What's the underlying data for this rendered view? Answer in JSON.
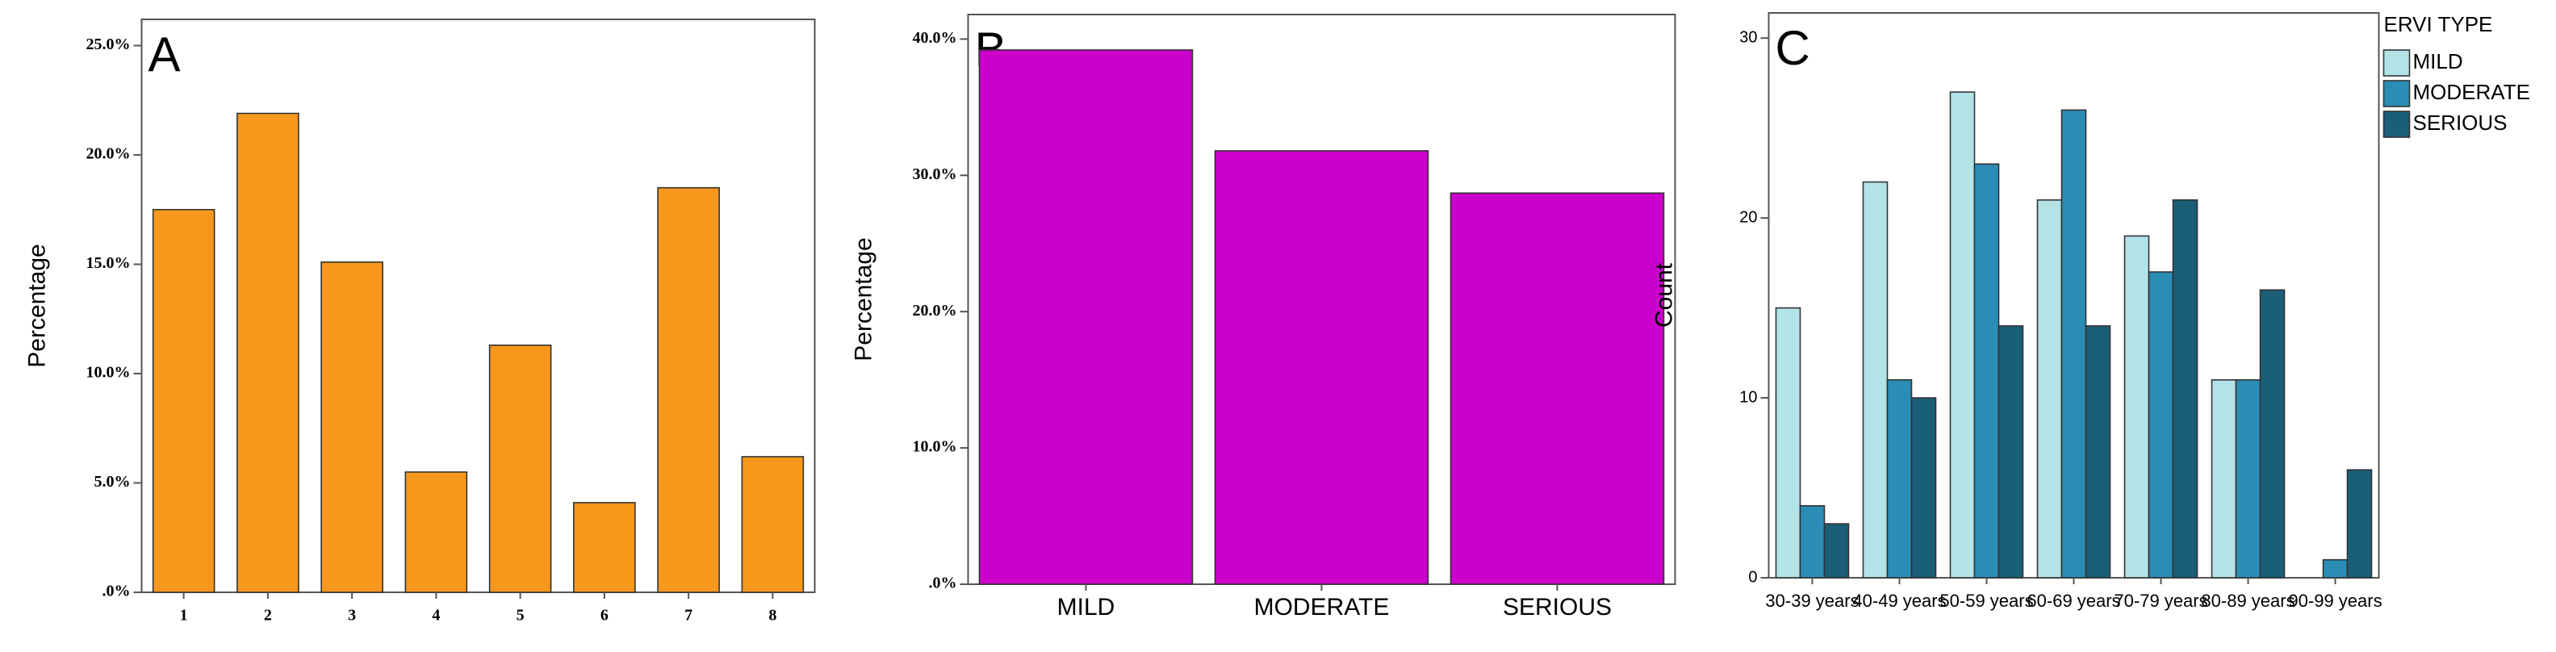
{
  "chart_data": [
    {
      "type": "bar",
      "panel_label": "A",
      "ylabel": "Percentage",
      "color": "#f7981d",
      "categories": [
        "1",
        "2",
        "3",
        "4",
        "5",
        "6",
        "7",
        "8"
      ],
      "values": [
        17.5,
        21.9,
        15.1,
        5.5,
        11.3,
        4.1,
        18.5,
        6.2
      ],
      "ylim": [
        0,
        26.2
      ],
      "yticks": [
        {
          "value": 0,
          "label": ".0%"
        },
        {
          "value": 5,
          "label": "5.0%"
        },
        {
          "value": 10,
          "label": "10.0%"
        },
        {
          "value": 15,
          "label": "15.0%"
        },
        {
          "value": 20,
          "label": "20.0%"
        },
        {
          "value": 25,
          "label": "25.0%"
        }
      ]
    },
    {
      "type": "bar",
      "panel_label": "B",
      "ylabel": "Percentage",
      "color": "#cc00cc",
      "categories": [
        "MILD",
        "MODERATE",
        "SERIOUS"
      ],
      "values": [
        39.2,
        31.8,
        28.7
      ],
      "ylim": [
        0,
        41.8
      ],
      "yticks": [
        {
          "value": 0,
          "label": ".0%"
        },
        {
          "value": 10,
          "label": "10.0%"
        },
        {
          "value": 20,
          "label": "20.0%"
        },
        {
          "value": 30,
          "label": "30.0%"
        },
        {
          "value": 40,
          "label": "40.0%"
        }
      ]
    },
    {
      "type": "grouped_bar",
      "panel_label": "C",
      "ylabel": "Count",
      "legend_title": "ERVI TYPE",
      "categories": [
        "30-39 years",
        "40-49 years",
        "50-59 years",
        "60-69 years",
        "70-79 years",
        "80-89 years",
        "90-99 years"
      ],
      "series": [
        {
          "name": "MILD",
          "color": "#b3e3e6",
          "values": [
            15,
            22,
            27,
            21,
            19,
            11,
            0
          ]
        },
        {
          "name": "MODERATE",
          "color": "#2a8db5",
          "values": [
            4,
            11,
            23,
            26,
            17,
            11,
            1
          ]
        },
        {
          "name": "SERIOUS",
          "color": "#1a5e78",
          "values": [
            3,
            10,
            14,
            14,
            21,
            16,
            6
          ]
        }
      ],
      "ylim": [
        0,
        31.4
      ],
      "yticks": [
        0,
        10,
        20,
        30
      ]
    }
  ]
}
